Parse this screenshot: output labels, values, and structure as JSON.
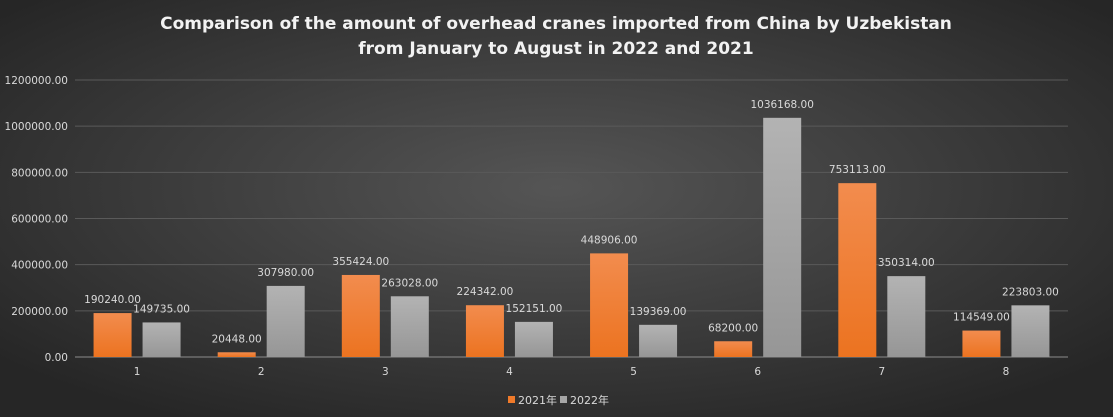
{
  "chart_data": {
    "type": "bar",
    "title_lines": [
      "Comparison of the amount of overhead cranes imported from China by Uzbekistan",
      "from January to August in 2022 and 2021"
    ],
    "categories": [
      "1",
      "2",
      "3",
      "4",
      "5",
      "6",
      "7",
      "8"
    ],
    "series": [
      {
        "name": "2021年",
        "color": "#f07a2a",
        "values": [
          190240.0,
          20448.0,
          355424.0,
          224342.0,
          448906.0,
          68200.0,
          753113.0,
          114549.0
        ]
      },
      {
        "name": "2022年",
        "color": "#a6a6a6",
        "values": [
          149735.0,
          307980.0,
          263028.0,
          152151.0,
          139369.0,
          1036168.0,
          350314.0,
          223803.0
        ]
      }
    ],
    "yticks": [
      "0.00",
      "200000.00",
      "400000.00",
      "600000.00",
      "800000.00",
      "1000000.00",
      "1200000.00"
    ],
    "ylim": [
      0,
      1200000
    ],
    "grid": true,
    "legend_position": "bottom",
    "data_labels": true
  }
}
